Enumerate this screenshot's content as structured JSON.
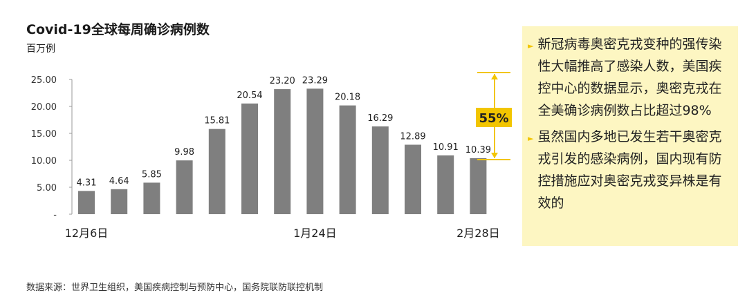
{
  "chart_data": {
    "type": "bar",
    "title": "Covid-19全球每周确诊病例数",
    "unit_label": "百万例",
    "values": [
      4.31,
      4.64,
      5.85,
      9.98,
      15.81,
      20.54,
      23.2,
      23.29,
      20.18,
      16.29,
      12.89,
      10.91,
      10.39
    ],
    "data_labels": [
      "4.31",
      "4.64",
      "5.85",
      "9.98",
      "15.81",
      "20.54",
      "23.20",
      "23.29",
      "20.18",
      "16.29",
      "12.89",
      "10.91",
      "10.39"
    ],
    "x_tick_labels": [
      {
        "index": 0,
        "label": "12月6日"
      },
      {
        "index": 7,
        "label": "1月24日"
      },
      {
        "index": 12,
        "label": "2月28日"
      }
    ],
    "y_ticks": [
      "25.00",
      "20.00",
      "15.00",
      "10.00",
      "5.00",
      "-"
    ],
    "ylim": [
      0,
      25
    ],
    "bar_color": "#7f7f7f",
    "annotation": {
      "label": "55%",
      "from_value": 23.29,
      "to_value": 10.39,
      "color": "#f2c500"
    },
    "grid": false
  },
  "notes": [
    "新冠病毒奥密克戎变种的强传染性大幅推高了感染人数，美国疾控中心的数据显示，奥密克戎在全美确诊病例数占比超过98%",
    "虽然国内多地已发生若干奥密克戎引发的感染病例，国内现有防控措施应对奥密克戎变异株是有效的"
  ],
  "source": "数据来源：世界卫生组织，美国疾病控制与预防中心，国务院联防联控机制"
}
